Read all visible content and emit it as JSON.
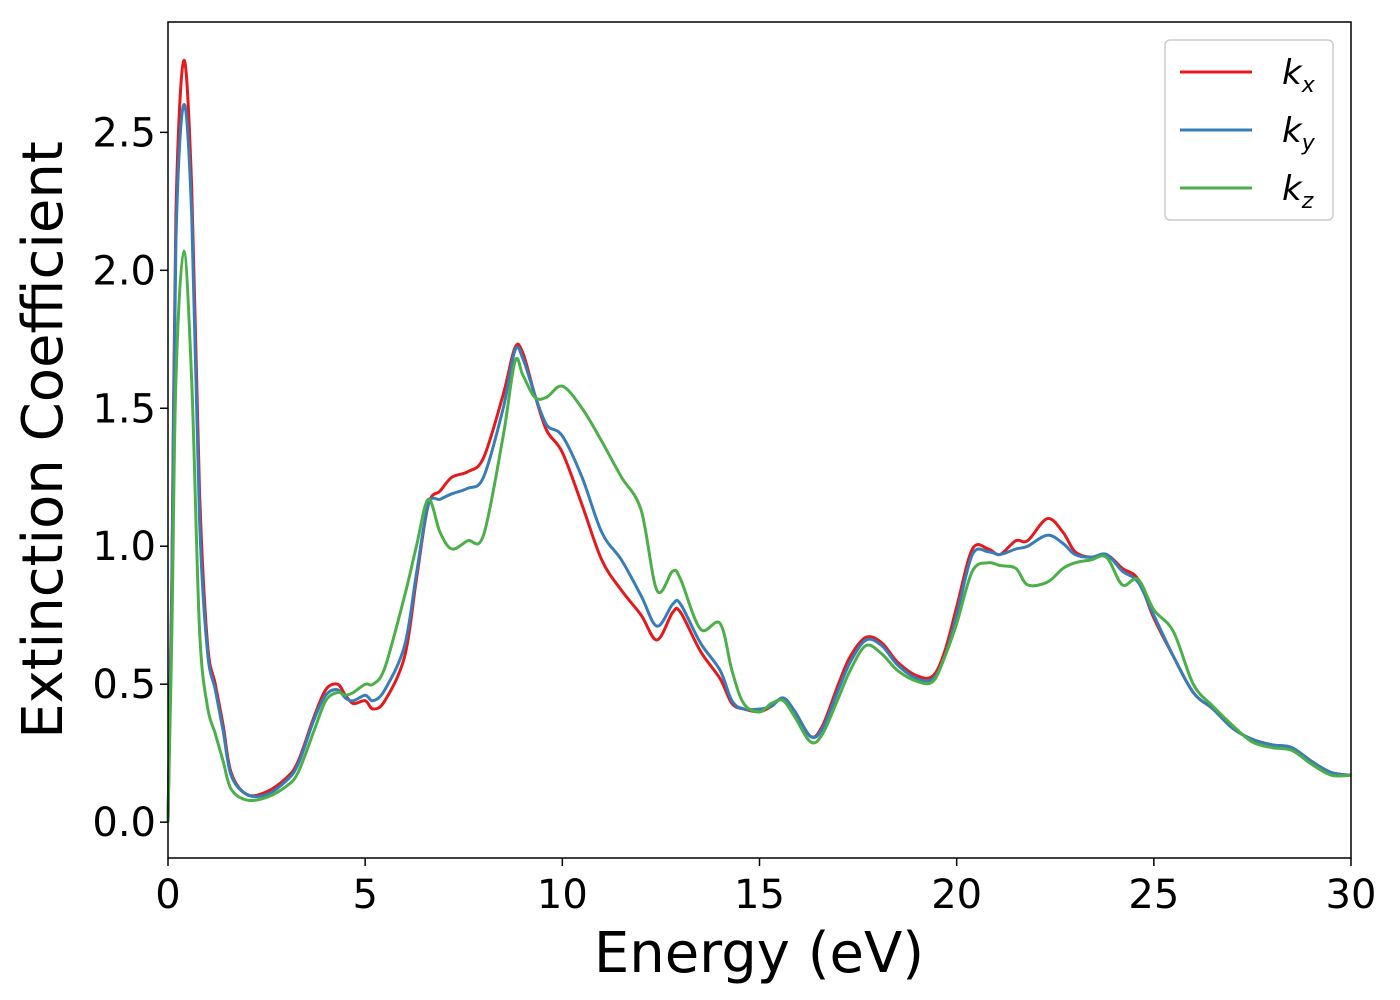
{
  "chart_data": {
    "type": "line",
    "xlabel": "Energy (eV)",
    "ylabel": "Extinction Coefficient",
    "xlim": [
      0,
      30
    ],
    "ylim": [
      -0.13,
      2.9
    ],
    "xticks": [
      "0",
      "5",
      "10",
      "15",
      "20",
      "25",
      "30"
    ],
    "xtick_values": [
      0,
      5,
      10,
      15,
      20,
      25,
      30
    ],
    "yticks": [
      "0.0",
      "0.5",
      "1.0",
      "1.5",
      "2.0",
      "2.5"
    ],
    "ytick_values": [
      0.0,
      0.5,
      1.0,
      1.5,
      2.0,
      2.5
    ],
    "grid": false,
    "legend_position": "top-right",
    "series": [
      {
        "name": "k",
        "subscript": "x",
        "color": "#e41a1c",
        "points": [
          [
            0,
            0
          ],
          [
            0.1,
            0.9
          ],
          [
            0.2,
            2.2
          ],
          [
            0.4,
            2.76
          ],
          [
            0.6,
            2.3
          ],
          [
            0.8,
            1.2
          ],
          [
            1.0,
            0.65
          ],
          [
            1.2,
            0.5
          ],
          [
            1.4,
            0.35
          ],
          [
            1.6,
            0.18
          ],
          [
            2.0,
            0.1
          ],
          [
            2.5,
            0.11
          ],
          [
            3.0,
            0.16
          ],
          [
            3.3,
            0.22
          ],
          [
            3.7,
            0.38
          ],
          [
            4.0,
            0.48
          ],
          [
            4.3,
            0.5
          ],
          [
            4.5,
            0.46
          ],
          [
            4.7,
            0.43
          ],
          [
            5.0,
            0.44
          ],
          [
            5.2,
            0.41
          ],
          [
            5.5,
            0.44
          ],
          [
            6.0,
            0.6
          ],
          [
            6.3,
            0.88
          ],
          [
            6.6,
            1.15
          ],
          [
            6.9,
            1.2
          ],
          [
            7.2,
            1.25
          ],
          [
            7.6,
            1.27
          ],
          [
            8.0,
            1.32
          ],
          [
            8.5,
            1.55
          ],
          [
            8.8,
            1.72
          ],
          [
            9.0,
            1.7
          ],
          [
            9.3,
            1.55
          ],
          [
            9.6,
            1.42
          ],
          [
            10.0,
            1.34
          ],
          [
            10.5,
            1.15
          ],
          [
            11.0,
            0.95
          ],
          [
            11.5,
            0.84
          ],
          [
            12.0,
            0.75
          ],
          [
            12.4,
            0.66
          ],
          [
            12.8,
            0.76
          ],
          [
            13.0,
            0.76
          ],
          [
            13.5,
            0.62
          ],
          [
            14.0,
            0.52
          ],
          [
            14.3,
            0.43
          ],
          [
            14.6,
            0.41
          ],
          [
            15.0,
            0.4
          ],
          [
            15.3,
            0.42
          ],
          [
            15.6,
            0.45
          ],
          [
            15.9,
            0.4
          ],
          [
            16.3,
            0.31
          ],
          [
            16.6,
            0.35
          ],
          [
            17.0,
            0.5
          ],
          [
            17.3,
            0.6
          ],
          [
            17.7,
            0.67
          ],
          [
            18.1,
            0.65
          ],
          [
            18.5,
            0.58
          ],
          [
            19.0,
            0.53
          ],
          [
            19.4,
            0.53
          ],
          [
            19.7,
            0.62
          ],
          [
            20.0,
            0.78
          ],
          [
            20.4,
            0.99
          ],
          [
            20.8,
            0.99
          ],
          [
            21.1,
            0.97
          ],
          [
            21.5,
            1.02
          ],
          [
            21.8,
            1.02
          ],
          [
            22.3,
            1.1
          ],
          [
            22.7,
            1.05
          ],
          [
            23.0,
            0.98
          ],
          [
            23.4,
            0.96
          ],
          [
            23.8,
            0.97
          ],
          [
            24.2,
            0.92
          ],
          [
            24.6,
            0.88
          ],
          [
            25.0,
            0.74
          ],
          [
            25.5,
            0.6
          ],
          [
            26.0,
            0.47
          ],
          [
            26.5,
            0.41
          ],
          [
            27.0,
            0.34
          ],
          [
            27.5,
            0.3
          ],
          [
            28.0,
            0.28
          ],
          [
            28.5,
            0.27
          ],
          [
            29.0,
            0.22
          ],
          [
            29.5,
            0.18
          ],
          [
            30.0,
            0.17
          ]
        ]
      },
      {
        "name": "k",
        "subscript": "y",
        "color": "#377eb8",
        "points": [
          [
            0,
            0
          ],
          [
            0.1,
            0.85
          ],
          [
            0.2,
            2.1
          ],
          [
            0.4,
            2.6
          ],
          [
            0.6,
            2.2
          ],
          [
            0.8,
            1.1
          ],
          [
            1.0,
            0.62
          ],
          [
            1.2,
            0.48
          ],
          [
            1.4,
            0.33
          ],
          [
            1.6,
            0.17
          ],
          [
            2.0,
            0.1
          ],
          [
            2.5,
            0.1
          ],
          [
            3.0,
            0.15
          ],
          [
            3.3,
            0.21
          ],
          [
            3.7,
            0.37
          ],
          [
            4.0,
            0.46
          ],
          [
            4.3,
            0.48
          ],
          [
            4.5,
            0.45
          ],
          [
            4.7,
            0.44
          ],
          [
            5.0,
            0.46
          ],
          [
            5.2,
            0.44
          ],
          [
            5.5,
            0.48
          ],
          [
            6.0,
            0.64
          ],
          [
            6.3,
            0.9
          ],
          [
            6.6,
            1.15
          ],
          [
            6.9,
            1.17
          ],
          [
            7.2,
            1.19
          ],
          [
            7.6,
            1.21
          ],
          [
            8.0,
            1.25
          ],
          [
            8.5,
            1.5
          ],
          [
            8.8,
            1.71
          ],
          [
            9.0,
            1.68
          ],
          [
            9.3,
            1.55
          ],
          [
            9.6,
            1.44
          ],
          [
            10.0,
            1.4
          ],
          [
            10.5,
            1.25
          ],
          [
            11.0,
            1.05
          ],
          [
            11.5,
            0.95
          ],
          [
            12.0,
            0.82
          ],
          [
            12.4,
            0.71
          ],
          [
            12.8,
            0.79
          ],
          [
            13.0,
            0.79
          ],
          [
            13.5,
            0.65
          ],
          [
            14.0,
            0.55
          ],
          [
            14.3,
            0.44
          ],
          [
            14.6,
            0.41
          ],
          [
            15.0,
            0.41
          ],
          [
            15.3,
            0.42
          ],
          [
            15.6,
            0.45
          ],
          [
            15.9,
            0.4
          ],
          [
            16.3,
            0.31
          ],
          [
            16.6,
            0.34
          ],
          [
            17.0,
            0.48
          ],
          [
            17.3,
            0.58
          ],
          [
            17.7,
            0.66
          ],
          [
            18.1,
            0.64
          ],
          [
            18.5,
            0.57
          ],
          [
            19.0,
            0.52
          ],
          [
            19.4,
            0.52
          ],
          [
            19.7,
            0.6
          ],
          [
            20.0,
            0.75
          ],
          [
            20.4,
            0.97
          ],
          [
            20.8,
            0.98
          ],
          [
            21.1,
            0.97
          ],
          [
            21.5,
            0.99
          ],
          [
            21.8,
            1.0
          ],
          [
            22.3,
            1.04
          ],
          [
            22.7,
            1.01
          ],
          [
            23.0,
            0.97
          ],
          [
            23.4,
            0.96
          ],
          [
            23.8,
            0.97
          ],
          [
            24.2,
            0.91
          ],
          [
            24.6,
            0.87
          ],
          [
            25.0,
            0.75
          ],
          [
            25.5,
            0.6
          ],
          [
            26.0,
            0.47
          ],
          [
            26.5,
            0.41
          ],
          [
            27.0,
            0.34
          ],
          [
            27.5,
            0.3
          ],
          [
            28.0,
            0.28
          ],
          [
            28.5,
            0.27
          ],
          [
            29.0,
            0.22
          ],
          [
            29.5,
            0.18
          ],
          [
            30.0,
            0.17
          ]
        ]
      },
      {
        "name": "k",
        "subscript": "z",
        "color": "#4daf4a",
        "points": [
          [
            0,
            0
          ],
          [
            0.1,
            0.7
          ],
          [
            0.2,
            1.6
          ],
          [
            0.4,
            2.07
          ],
          [
            0.6,
            1.6
          ],
          [
            0.8,
            0.7
          ],
          [
            1.0,
            0.42
          ],
          [
            1.2,
            0.32
          ],
          [
            1.4,
            0.22
          ],
          [
            1.6,
            0.12
          ],
          [
            2.0,
            0.08
          ],
          [
            2.5,
            0.09
          ],
          [
            3.0,
            0.13
          ],
          [
            3.3,
            0.18
          ],
          [
            3.7,
            0.33
          ],
          [
            4.0,
            0.44
          ],
          [
            4.3,
            0.47
          ],
          [
            4.5,
            0.46
          ],
          [
            4.7,
            0.47
          ],
          [
            5.0,
            0.5
          ],
          [
            5.2,
            0.5
          ],
          [
            5.5,
            0.56
          ],
          [
            6.0,
            0.82
          ],
          [
            6.3,
            1.0
          ],
          [
            6.6,
            1.17
          ],
          [
            6.9,
            1.05
          ],
          [
            7.2,
            0.99
          ],
          [
            7.6,
            1.02
          ],
          [
            8.0,
            1.04
          ],
          [
            8.5,
            1.4
          ],
          [
            8.8,
            1.67
          ],
          [
            9.0,
            1.62
          ],
          [
            9.3,
            1.54
          ],
          [
            9.6,
            1.54
          ],
          [
            10.0,
            1.58
          ],
          [
            10.5,
            1.5
          ],
          [
            11.0,
            1.38
          ],
          [
            11.5,
            1.25
          ],
          [
            12.0,
            1.13
          ],
          [
            12.4,
            0.84
          ],
          [
            12.8,
            0.91
          ],
          [
            13.0,
            0.88
          ],
          [
            13.5,
            0.7
          ],
          [
            14.0,
            0.72
          ],
          [
            14.3,
            0.55
          ],
          [
            14.6,
            0.43
          ],
          [
            15.0,
            0.4
          ],
          [
            15.3,
            0.43
          ],
          [
            15.6,
            0.44
          ],
          [
            15.9,
            0.38
          ],
          [
            16.3,
            0.29
          ],
          [
            16.6,
            0.32
          ],
          [
            17.0,
            0.45
          ],
          [
            17.3,
            0.55
          ],
          [
            17.7,
            0.64
          ],
          [
            18.1,
            0.61
          ],
          [
            18.5,
            0.55
          ],
          [
            19.0,
            0.51
          ],
          [
            19.4,
            0.51
          ],
          [
            19.7,
            0.6
          ],
          [
            20.0,
            0.72
          ],
          [
            20.4,
            0.91
          ],
          [
            20.8,
            0.94
          ],
          [
            21.1,
            0.93
          ],
          [
            21.5,
            0.92
          ],
          [
            21.8,
            0.86
          ],
          [
            22.3,
            0.87
          ],
          [
            22.7,
            0.92
          ],
          [
            23.0,
            0.94
          ],
          [
            23.4,
            0.95
          ],
          [
            23.8,
            0.96
          ],
          [
            24.2,
            0.86
          ],
          [
            24.6,
            0.88
          ],
          [
            25.0,
            0.77
          ],
          [
            25.5,
            0.69
          ],
          [
            26.0,
            0.5
          ],
          [
            26.5,
            0.42
          ],
          [
            27.0,
            0.35
          ],
          [
            27.5,
            0.29
          ],
          [
            28.0,
            0.27
          ],
          [
            28.5,
            0.26
          ],
          [
            29.0,
            0.21
          ],
          [
            29.5,
            0.17
          ],
          [
            30.0,
            0.17
          ]
        ]
      }
    ]
  }
}
